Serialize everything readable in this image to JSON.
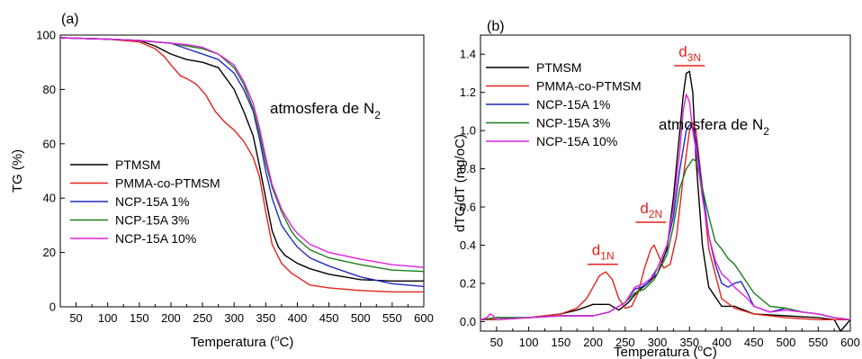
{
  "chart_data": [
    {
      "panel_label": "(a)",
      "type": "line",
      "xlabel_pre": "Temperatura (",
      "xlabel_sup": "o",
      "xlabel_post": "C)",
      "ylabel": "TG (%)",
      "xlim": [
        25,
        600
      ],
      "ylim": [
        0,
        100
      ],
      "xticks": [
        50,
        100,
        150,
        200,
        250,
        300,
        350,
        400,
        450,
        500,
        550,
        600
      ],
      "yticks": [
        0,
        20,
        40,
        60,
        80,
        100
      ],
      "annotation_main": "atmosfera de N",
      "annotation_sub": "2",
      "legend_position": "lower-left",
      "grid": false,
      "series": [
        {
          "name": "PTMSM",
          "color": "#000000",
          "x": [
            25,
            100,
            150,
            175,
            200,
            225,
            250,
            275,
            300,
            315,
            330,
            340,
            350,
            360,
            370,
            380,
            400,
            420,
            450,
            500,
            550,
            600
          ],
          "y": [
            99,
            98.5,
            98,
            96,
            93,
            91,
            90,
            88,
            80,
            72,
            63,
            52,
            40,
            28,
            22,
            19,
            16,
            14,
            12,
            10,
            9.5,
            9.5
          ]
        },
        {
          "name": "PMMA-co-PTMSM",
          "color": "#e2231a",
          "x": [
            25,
            100,
            150,
            175,
            190,
            200,
            215,
            225,
            240,
            255,
            270,
            285,
            300,
            315,
            330,
            340,
            350,
            360,
            375,
            390,
            400,
            420,
            450,
            500,
            550,
            600
          ],
          "y": [
            99,
            98.5,
            97.5,
            95,
            92,
            89,
            85,
            84,
            82,
            78,
            72,
            68,
            65,
            61,
            55,
            48,
            35,
            23,
            16,
            12.5,
            11,
            8,
            7,
            6,
            5.5,
            5.5
          ]
        },
        {
          "name": "NCP-15A 1%",
          "color": "#1f2bbf",
          "x": [
            25,
            100,
            150,
            200,
            225,
            250,
            275,
            300,
            315,
            330,
            340,
            350,
            360,
            375,
            390,
            400,
            420,
            450,
            500,
            550,
            600
          ],
          "y": [
            99,
            98.5,
            98,
            97,
            95,
            93,
            91,
            86,
            80,
            72,
            62,
            50,
            40,
            30,
            25,
            22,
            18,
            15,
            11,
            8.5,
            7.5
          ]
        },
        {
          "name": "NCP-15A 3%",
          "color": "#1a7f1a",
          "x": [
            25,
            100,
            150,
            200,
            225,
            250,
            275,
            300,
            315,
            330,
            340,
            350,
            360,
            375,
            390,
            400,
            420,
            450,
            500,
            550,
            600
          ],
          "y": [
            99,
            98.5,
            98,
            97,
            96,
            95,
            93,
            88,
            82,
            73,
            64,
            53,
            44,
            35,
            28,
            25,
            21,
            18,
            15.5,
            13.5,
            13
          ]
        },
        {
          "name": "NCP-15A 10%",
          "color": "#e020e0",
          "x": [
            25,
            100,
            150,
            200,
            225,
            250,
            275,
            300,
            315,
            330,
            340,
            350,
            360,
            375,
            390,
            400,
            420,
            450,
            500,
            550,
            600
          ],
          "y": [
            99,
            98.5,
            98,
            97,
            96.5,
            95.5,
            93,
            89,
            83,
            75,
            66,
            55,
            45,
            36,
            30,
            27,
            23,
            20,
            17.5,
            15.5,
            14.5
          ]
        }
      ]
    },
    {
      "panel_label": "(b)",
      "type": "line",
      "xlabel_pre": "Temperatura (",
      "xlabel_sup": "o",
      "xlabel_post": "C)",
      "ylabel": "dTG/dT (mg/oC)",
      "xlim": [
        25,
        600
      ],
      "ylim": [
        -0.05,
        1.5
      ],
      "xticks": [
        50,
        100,
        150,
        200,
        250,
        300,
        350,
        400,
        450,
        500,
        550,
        600
      ],
      "yticks": [
        0.0,
        0.2,
        0.4,
        0.6,
        0.8,
        1.0,
        1.2,
        1.4
      ],
      "ytick_labels": [
        "0.0",
        "0.2",
        "0.4",
        "0.6",
        "0.8",
        "1.0",
        "1.2",
        "1.4"
      ],
      "annotation_main": "atmosfera de N",
      "annotation_sub": "2",
      "legend_position": "upper-left",
      "grid": false,
      "peak_labels": [
        {
          "main": "d",
          "sub": "1N",
          "x": 215,
          "y": 0.3
        },
        {
          "main": "d",
          "sub": "2N",
          "x": 290,
          "y": 0.52
        },
        {
          "main": "d",
          "sub": "3N",
          "x": 350,
          "y": 1.34
        }
      ],
      "series": [
        {
          "name": "PTMSM",
          "color": "#000000",
          "x": [
            25,
            50,
            100,
            150,
            175,
            200,
            225,
            240,
            255,
            270,
            285,
            300,
            315,
            325,
            335,
            340,
            345,
            350,
            355,
            360,
            370,
            380,
            400,
            420,
            450,
            500,
            550,
            575,
            585,
            600
          ],
          "y": [
            0.01,
            0.02,
            0.02,
            0.04,
            0.06,
            0.09,
            0.09,
            0.06,
            0.1,
            0.16,
            0.2,
            0.25,
            0.38,
            0.65,
            1.0,
            1.18,
            1.3,
            1.31,
            1.2,
            0.85,
            0.4,
            0.18,
            0.08,
            0.08,
            0.04,
            0.03,
            0.02,
            0.01,
            -0.05,
            0.01
          ]
        },
        {
          "name": "PMMA-co-PTMSM",
          "color": "#e2231a",
          "x": [
            25,
            50,
            100,
            150,
            175,
            190,
            200,
            210,
            220,
            230,
            240,
            250,
            260,
            270,
            280,
            290,
            295,
            300,
            310,
            320,
            330,
            340,
            350,
            355,
            360,
            370,
            380,
            400,
            420,
            450,
            500,
            550,
            600
          ],
          "y": [
            0.01,
            0.01,
            0.02,
            0.04,
            0.07,
            0.12,
            0.18,
            0.24,
            0.26,
            0.22,
            0.12,
            0.07,
            0.08,
            0.15,
            0.28,
            0.38,
            0.4,
            0.36,
            0.28,
            0.3,
            0.45,
            0.75,
            1.0,
            1.04,
            1.0,
            0.7,
            0.38,
            0.12,
            0.07,
            0.04,
            0.02,
            0.01,
            0.01
          ]
        },
        {
          "name": "NCP-15A 1%",
          "color": "#1f2bbf",
          "x": [
            25,
            50,
            100,
            150,
            200,
            225,
            250,
            265,
            275,
            285,
            300,
            315,
            325,
            335,
            345,
            350,
            355,
            360,
            370,
            380,
            390,
            400,
            410,
            420,
            430,
            440,
            450,
            475,
            500,
            525,
            550,
            575,
            600
          ],
          "y": [
            0.01,
            0.02,
            0.02,
            0.03,
            0.03,
            0.05,
            0.1,
            0.17,
            0.18,
            0.2,
            0.28,
            0.4,
            0.55,
            0.8,
            1.0,
            1.03,
            1.02,
            0.95,
            0.7,
            0.45,
            0.3,
            0.2,
            0.18,
            0.2,
            0.21,
            0.15,
            0.08,
            0.05,
            0.07,
            0.05,
            0.04,
            0.02,
            0.01
          ]
        },
        {
          "name": "NCP-15A 3%",
          "color": "#1a7f1a",
          "x": [
            25,
            50,
            100,
            150,
            200,
            225,
            250,
            265,
            280,
            295,
            300,
            315,
            325,
            335,
            345,
            355,
            360,
            370,
            380,
            390,
            400,
            410,
            420,
            430,
            440,
            450,
            475,
            500,
            525,
            550,
            575,
            600
          ],
          "y": [
            0.01,
            0.02,
            0.02,
            0.03,
            0.03,
            0.05,
            0.1,
            0.15,
            0.17,
            0.22,
            0.25,
            0.35,
            0.5,
            0.7,
            0.8,
            0.85,
            0.84,
            0.7,
            0.55,
            0.42,
            0.38,
            0.33,
            0.3,
            0.25,
            0.2,
            0.15,
            0.08,
            0.07,
            0.05,
            0.04,
            0.02,
            0.01
          ]
        },
        {
          "name": "NCP-15A 10%",
          "color": "#e020e0",
          "x": [
            25,
            35,
            40,
            45,
            50,
            100,
            150,
            200,
            225,
            250,
            265,
            280,
            295,
            300,
            315,
            325,
            335,
            340,
            345,
            350,
            355,
            360,
            370,
            380,
            390,
            400,
            410,
            420,
            430,
            440,
            450,
            475,
            500,
            525,
            550,
            575,
            600
          ],
          "y": [
            0.01,
            0.02,
            0.04,
            0.03,
            0.01,
            0.02,
            0.03,
            0.03,
            0.05,
            0.1,
            0.18,
            0.2,
            0.24,
            0.28,
            0.4,
            0.6,
            0.9,
            1.1,
            1.19,
            1.15,
            1.0,
            0.9,
            0.65,
            0.45,
            0.32,
            0.25,
            0.22,
            0.18,
            0.15,
            0.12,
            0.08,
            0.05,
            0.06,
            0.05,
            0.04,
            0.02,
            0.01
          ]
        }
      ]
    }
  ]
}
